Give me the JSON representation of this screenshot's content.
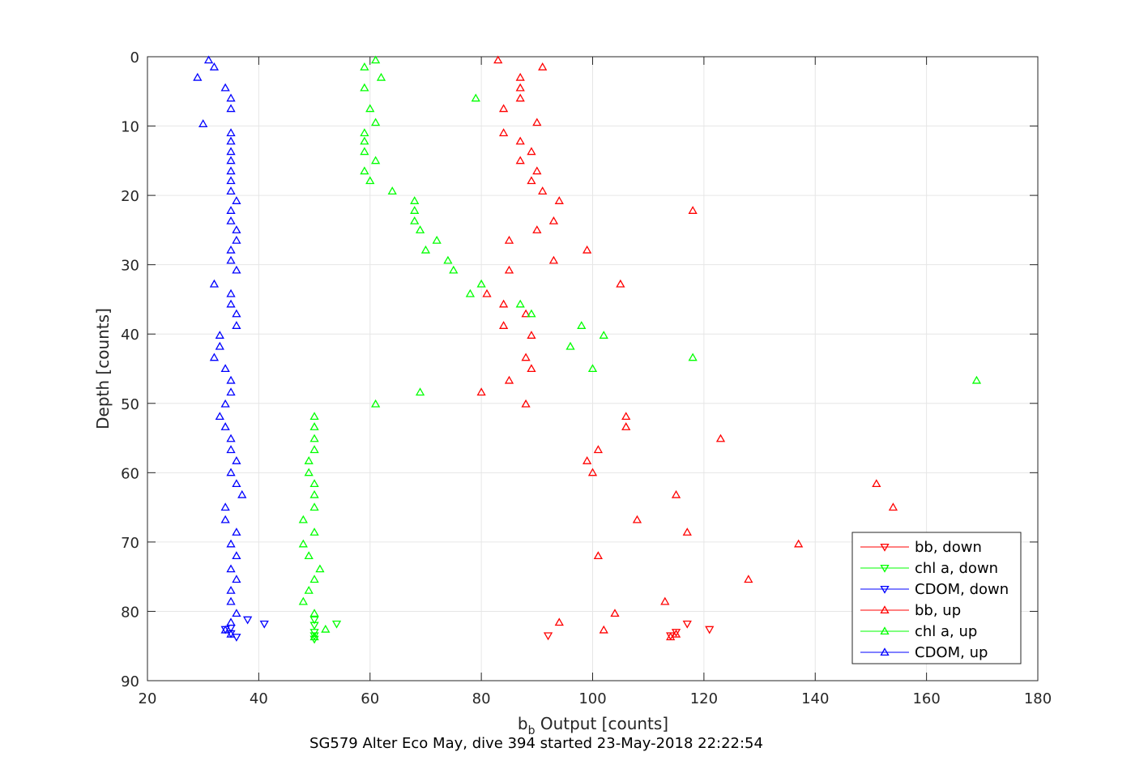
{
  "chart_data": {
    "type": "scatter",
    "title": "",
    "xlabel": {
      "main": "b",
      "sub": "b",
      "rest": " Output [counts]"
    },
    "ylabel": "Depth [counts]",
    "caption": "SG579 Alter Eco May, dive 394 started 23-May-2018 22:22:54",
    "xlim": [
      20,
      180
    ],
    "ylim": [
      0,
      90
    ],
    "y_reversed": true,
    "grid": true,
    "xticks": [
      20,
      40,
      60,
      80,
      100,
      120,
      140,
      160,
      180
    ],
    "yticks": [
      0,
      10,
      20,
      30,
      40,
      50,
      60,
      70,
      80,
      90
    ],
    "legend": {
      "position": "bottom-right"
    },
    "colors": {
      "red": "#ff0000",
      "green": "#00ff00",
      "blue": "#0000ff",
      "axis": "#262626",
      "grid": "#e6e6e6"
    },
    "series": [
      {
        "name": "bb, down",
        "color": "#ff0000",
        "marker": "triangle-down",
        "points": [
          [
            92,
            83.5
          ],
          [
            114,
            83.5
          ],
          [
            115,
            83.0
          ],
          [
            117,
            81.8
          ],
          [
            121,
            82.6
          ]
        ]
      },
      {
        "name": "chl a, down",
        "color": "#00ff00",
        "marker": "triangle-down",
        "points": [
          [
            50,
            84.0
          ],
          [
            50,
            83.5
          ],
          [
            50,
            83.0
          ],
          [
            50,
            82.0
          ],
          [
            54,
            81.8
          ],
          [
            50,
            81.2
          ]
        ]
      },
      {
        "name": "CDOM, down",
        "color": "#0000ff",
        "marker": "triangle-down",
        "points": [
          [
            36,
            83.7
          ],
          [
            35,
            83.2
          ],
          [
            34,
            82.6
          ],
          [
            35,
            82.4
          ],
          [
            41,
            81.8
          ],
          [
            38,
            81.2
          ]
        ]
      },
      {
        "name": "bb, up",
        "color": "#ff0000",
        "marker": "triangle-up",
        "points": [
          [
            83,
            0.5
          ],
          [
            91,
            1.5
          ],
          [
            87,
            3.0
          ],
          [
            87,
            4.5
          ],
          [
            87,
            6.0
          ],
          [
            84,
            7.5
          ],
          [
            90,
            9.5
          ],
          [
            84,
            11.0
          ],
          [
            87,
            12.2
          ],
          [
            89,
            13.7
          ],
          [
            87,
            15.0
          ],
          [
            90,
            16.5
          ],
          [
            89,
            17.9
          ],
          [
            91,
            19.4
          ],
          [
            94,
            20.8
          ],
          [
            118,
            22.2
          ],
          [
            93,
            23.7
          ],
          [
            90,
            25.0
          ],
          [
            85,
            26.5
          ],
          [
            99,
            27.9
          ],
          [
            93,
            29.4
          ],
          [
            85,
            30.8
          ],
          [
            105,
            32.8
          ],
          [
            81,
            34.2
          ],
          [
            84,
            35.7
          ],
          [
            88,
            37.1
          ],
          [
            84,
            38.8
          ],
          [
            89,
            40.2
          ],
          [
            88,
            43.4
          ],
          [
            89,
            45.0
          ],
          [
            85,
            46.7
          ],
          [
            80,
            48.4
          ],
          [
            88,
            50.1
          ],
          [
            106,
            51.9
          ],
          [
            106,
            53.4
          ],
          [
            123,
            55.1
          ],
          [
            101,
            56.7
          ],
          [
            99,
            58.3
          ],
          [
            100,
            60.0
          ],
          [
            151,
            61.6
          ],
          [
            115,
            63.2
          ],
          [
            154,
            65.0
          ],
          [
            108,
            66.8
          ],
          [
            117,
            68.6
          ],
          [
            137,
            70.3
          ],
          [
            101,
            72.0
          ],
          [
            128,
            75.4
          ],
          [
            113,
            78.6
          ],
          [
            104,
            80.3
          ],
          [
            94,
            81.6
          ],
          [
            102,
            82.7
          ],
          [
            115,
            83.3
          ],
          [
            114,
            83.7
          ]
        ]
      },
      {
        "name": "chl a, up",
        "color": "#00ff00",
        "marker": "triangle-up",
        "points": [
          [
            61,
            0.5
          ],
          [
            59,
            1.5
          ],
          [
            62,
            3.0
          ],
          [
            59,
            4.5
          ],
          [
            79,
            6.0
          ],
          [
            60,
            7.5
          ],
          [
            61,
            9.5
          ],
          [
            59,
            11.0
          ],
          [
            59,
            12.2
          ],
          [
            59,
            13.7
          ],
          [
            61,
            15.0
          ],
          [
            59,
            16.5
          ],
          [
            60,
            17.9
          ],
          [
            64,
            19.4
          ],
          [
            68,
            20.8
          ],
          [
            68,
            22.2
          ],
          [
            68,
            23.7
          ],
          [
            69,
            25.0
          ],
          [
            72,
            26.5
          ],
          [
            70,
            27.9
          ],
          [
            74,
            29.4
          ],
          [
            75,
            30.8
          ],
          [
            80,
            32.8
          ],
          [
            78,
            34.2
          ],
          [
            87,
            35.7
          ],
          [
            89,
            37.1
          ],
          [
            98,
            38.8
          ],
          [
            102,
            40.2
          ],
          [
            96,
            41.8
          ],
          [
            118,
            43.4
          ],
          [
            100,
            45.0
          ],
          [
            169,
            46.7
          ],
          [
            69,
            48.4
          ],
          [
            61,
            50.1
          ],
          [
            50,
            51.9
          ],
          [
            50,
            53.4
          ],
          [
            50,
            55.1
          ],
          [
            50,
            56.7
          ],
          [
            49,
            58.3
          ],
          [
            49,
            60.0
          ],
          [
            50,
            61.6
          ],
          [
            50,
            63.2
          ],
          [
            50,
            65.0
          ],
          [
            48,
            66.8
          ],
          [
            50,
            68.6
          ],
          [
            48,
            70.3
          ],
          [
            49,
            72.0
          ],
          [
            51,
            73.9
          ],
          [
            50,
            75.4
          ],
          [
            49,
            77.0
          ],
          [
            48,
            78.6
          ],
          [
            50,
            80.3
          ],
          [
            52,
            82.6
          ],
          [
            50,
            83.7
          ]
        ]
      },
      {
        "name": "CDOM, up",
        "color": "#0000ff",
        "marker": "triangle-up",
        "points": [
          [
            31,
            0.5
          ],
          [
            32,
            1.5
          ],
          [
            29,
            3.0
          ],
          [
            34,
            4.5
          ],
          [
            35,
            6.0
          ],
          [
            35,
            7.5
          ],
          [
            30,
            9.7
          ],
          [
            35,
            11.0
          ],
          [
            35,
            12.2
          ],
          [
            35,
            13.7
          ],
          [
            35,
            15.0
          ],
          [
            35,
            16.5
          ],
          [
            35,
            17.9
          ],
          [
            35,
            19.4
          ],
          [
            36,
            20.8
          ],
          [
            35,
            22.2
          ],
          [
            35,
            23.7
          ],
          [
            36,
            25.0
          ],
          [
            36,
            26.5
          ],
          [
            35,
            27.9
          ],
          [
            35,
            29.4
          ],
          [
            36,
            30.8
          ],
          [
            32,
            32.8
          ],
          [
            35,
            34.2
          ],
          [
            35,
            35.7
          ],
          [
            36,
            37.1
          ],
          [
            36,
            38.8
          ],
          [
            33,
            40.2
          ],
          [
            33,
            41.8
          ],
          [
            32,
            43.4
          ],
          [
            34,
            45.0
          ],
          [
            35,
            46.7
          ],
          [
            35,
            48.4
          ],
          [
            34,
            50.1
          ],
          [
            33,
            51.9
          ],
          [
            34,
            53.4
          ],
          [
            35,
            55.1
          ],
          [
            35,
            56.7
          ],
          [
            36,
            58.3
          ],
          [
            35,
            60.0
          ],
          [
            36,
            61.6
          ],
          [
            37,
            63.2
          ],
          [
            34,
            65.0
          ],
          [
            34,
            66.8
          ],
          [
            36,
            68.6
          ],
          [
            35,
            70.3
          ],
          [
            36,
            72.0
          ],
          [
            35,
            73.9
          ],
          [
            36,
            75.4
          ],
          [
            35,
            77.0
          ],
          [
            35,
            78.6
          ],
          [
            36,
            80.3
          ],
          [
            35,
            81.6
          ],
          [
            34,
            82.7
          ],
          [
            35,
            83.3
          ]
        ]
      }
    ]
  }
}
